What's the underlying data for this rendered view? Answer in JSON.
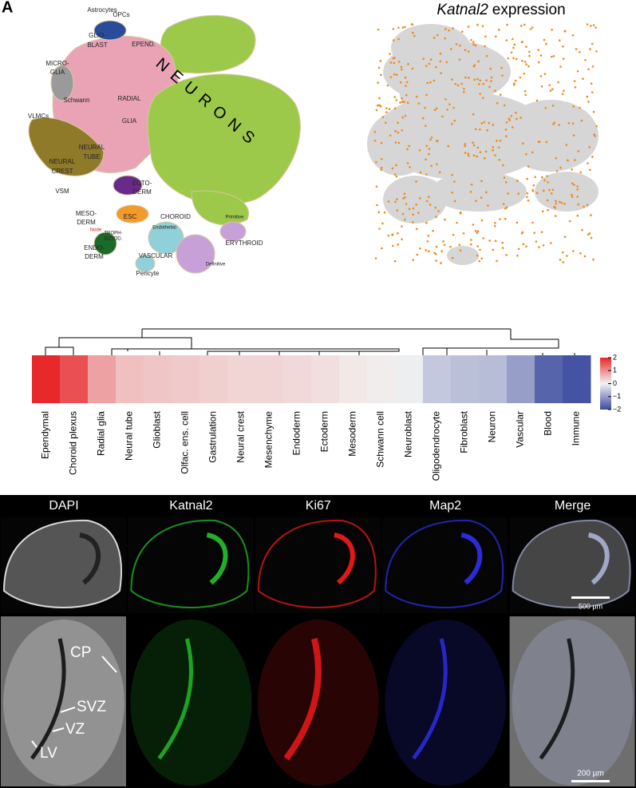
{
  "figure": {
    "panel_label": "A"
  },
  "umap": {
    "labels": [
      "Astrocytes",
      "OPCs",
      "GLIO-",
      "BLAST",
      "EPEND.",
      "MICRO-",
      "GLIA",
      "Schwann",
      "RADIAL",
      "GLIA",
      "VLMCs",
      "NEURAL",
      "TUBE",
      "NEURAL",
      "CREST",
      "VSM",
      "ECTO-",
      "DERM",
      "MESO-",
      "DERM",
      "ESC",
      "CHOROID",
      "Node",
      "TROPH-",
      "ECTOD.",
      "ENDO-",
      "DERM",
      "Endothelial",
      "Primitive",
      "ERYTHROID",
      "VASCULAR",
      "Definitive",
      "Pericyte",
      "NEURONS"
    ]
  },
  "expression": {
    "gene": "Katnal2",
    "label": "expression"
  },
  "chart_data": {
    "type": "heatmap",
    "categories": [
      "Ependymal",
      "Choroid plexus",
      "Radial glia",
      "Neural tube",
      "Glioblast",
      "Olfac. ens. cell",
      "Gastrulation",
      "Neural crest",
      "Mesenchyme",
      "Endoderm",
      "Ectoderm",
      "Mesoderm",
      "Schwann cell",
      "Neuroblast",
      "Oligodendrocyte",
      "Fibroblast",
      "Neuron",
      "Vascular",
      "Blood",
      "Immune"
    ],
    "values": [
      2.0,
      1.6,
      0.8,
      0.5,
      0.45,
      0.4,
      0.35,
      0.3,
      0.3,
      0.25,
      0.2,
      0.1,
      0.05,
      -0.05,
      -0.5,
      -0.6,
      -0.65,
      -1.0,
      -1.7,
      -1.9
    ],
    "colormap": [
      "#3b4ba0",
      "#f2f2f2",
      "#e8282a"
    ],
    "clim": [
      -2,
      2
    ],
    "cticks": [
      2,
      1,
      0,
      {
        "value": -1,
        "label": "−1"
      },
      {
        "value": -2,
        "label": "−2"
      }
    ]
  },
  "microscopy": {
    "channels": [
      {
        "name": "DAPI",
        "color": "#d8d8d8"
      },
      {
        "name": "Katnal2",
        "color": "#22b026"
      },
      {
        "name": "Ki67",
        "color": "#e01818"
      },
      {
        "name": "Map2",
        "color": "#2b2bd8"
      },
      {
        "name": "Merge",
        "color": "#a0a8c8"
      }
    ],
    "annotations": [
      "CP",
      "SVZ",
      "VZ",
      "LV"
    ],
    "scale_bars": [
      "500 µm",
      "200 µm"
    ]
  }
}
